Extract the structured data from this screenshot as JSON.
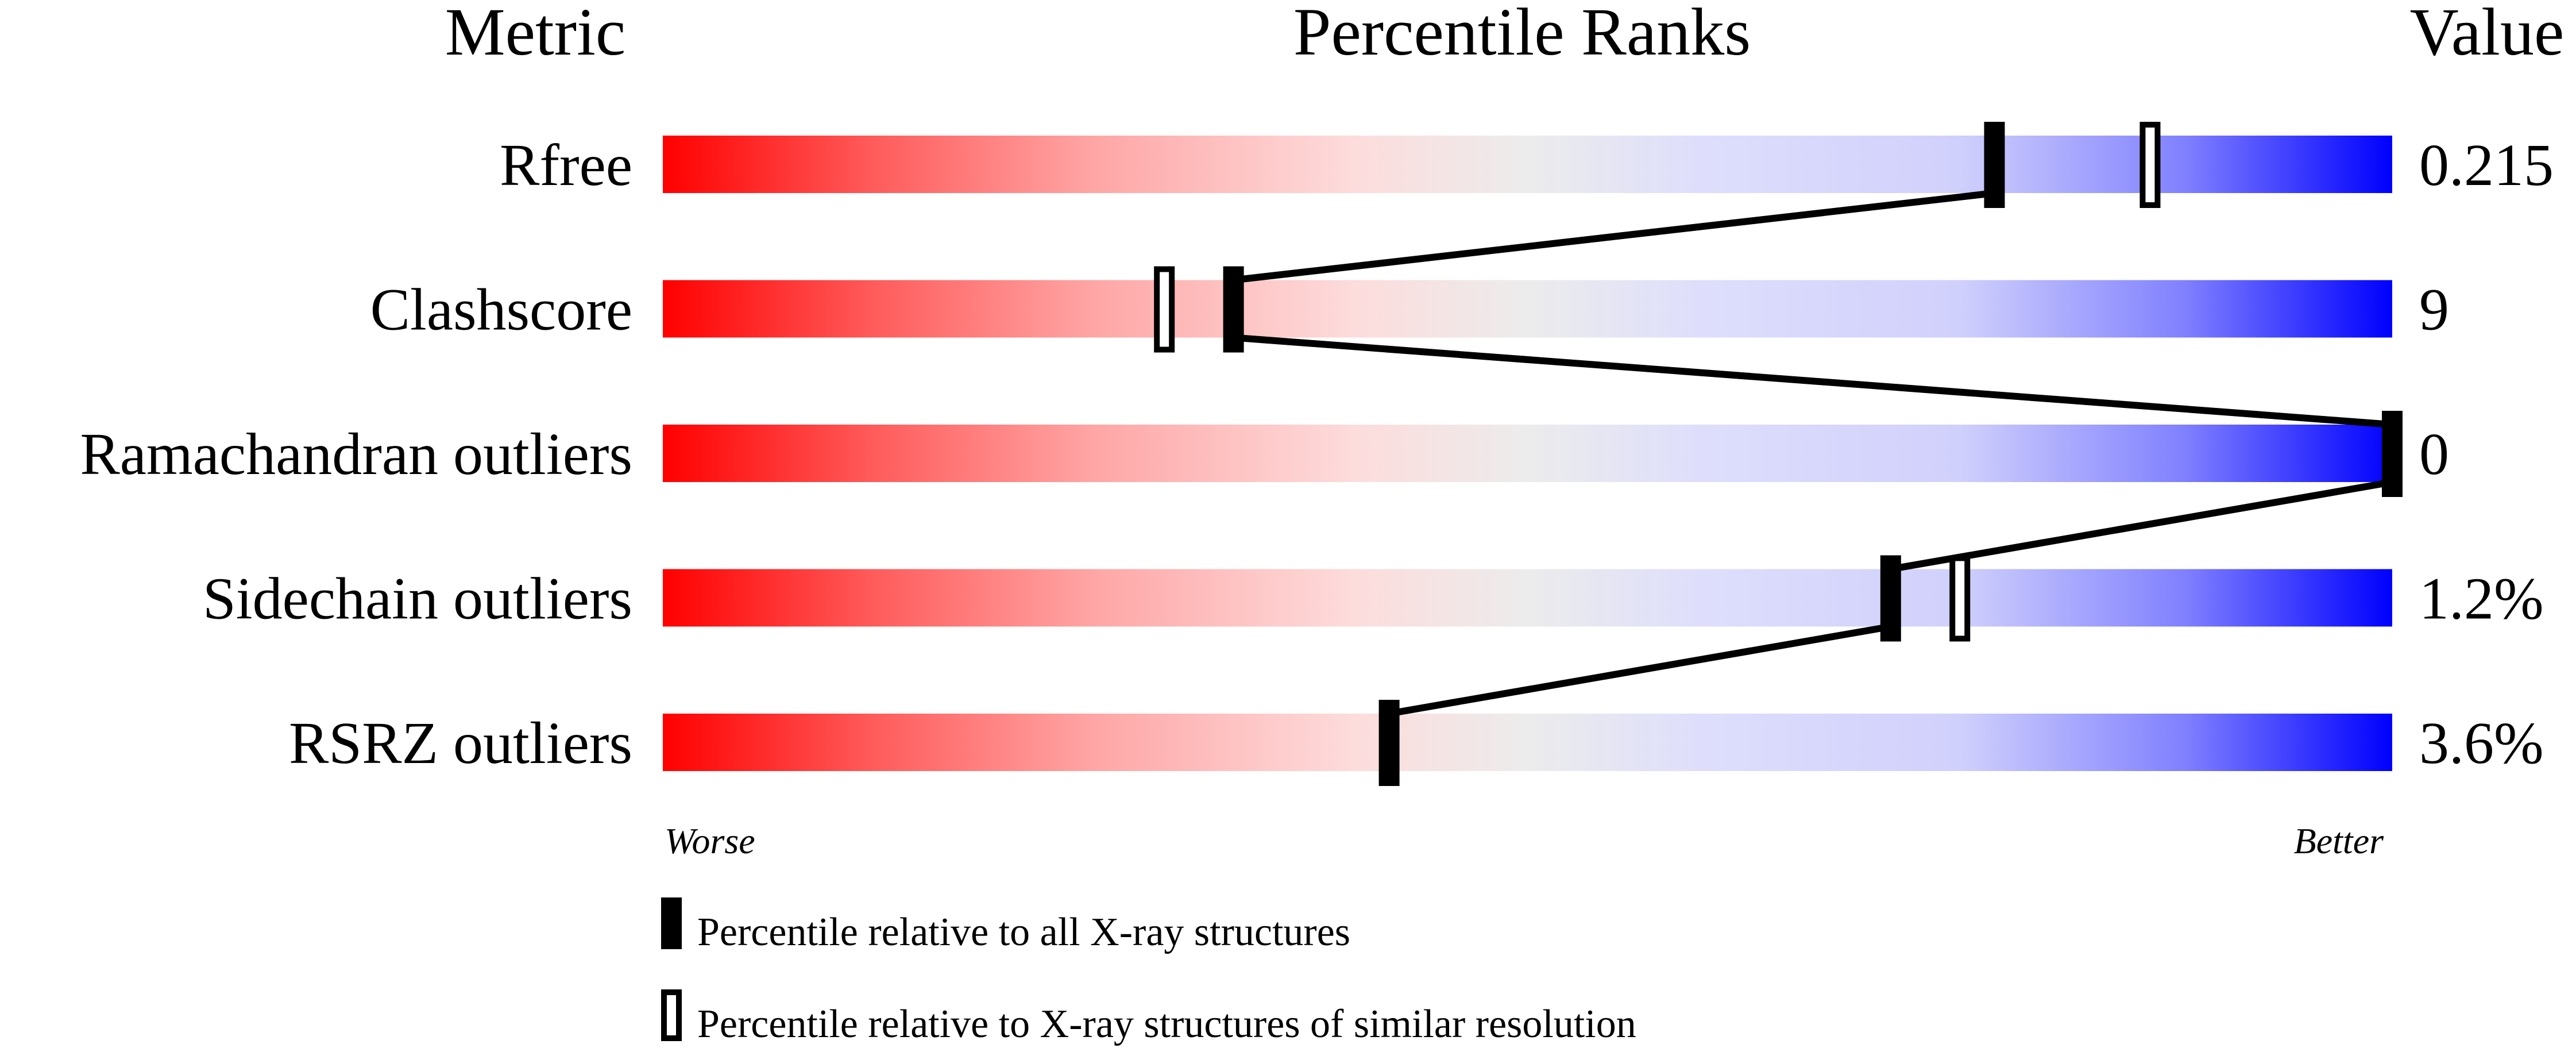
{
  "chart_data": {
    "type": "percentile-bar",
    "headers": {
      "metric": "Metric",
      "ranks": "Percentile Ranks",
      "value": "Value"
    },
    "xlim": [
      0,
      100
    ],
    "axis_labels": {
      "left": "Worse",
      "right": "Better"
    },
    "gradient_colors": [
      "#ff0000",
      "#ececec",
      "#0000ff"
    ],
    "rows": [
      {
        "metric": "Rfree",
        "value": "0.215",
        "percentile_all": 77,
        "percentile_similar": 86
      },
      {
        "metric": "Clashscore",
        "value": "9",
        "percentile_all": 33,
        "percentile_similar": 29
      },
      {
        "metric": "Ramachandran outliers",
        "value": "0",
        "percentile_all": 100,
        "percentile_similar": null
      },
      {
        "metric": "Sidechain outliers",
        "value": "1.2%",
        "percentile_all": 71,
        "percentile_similar": 75
      },
      {
        "metric": "RSRZ outliers",
        "value": "3.6%",
        "percentile_all": 42,
        "percentile_similar": null
      }
    ],
    "legend": [
      {
        "style": "filled",
        "label": "Percentile relative to all X-ray structures"
      },
      {
        "style": "hollow",
        "label": "Percentile relative to X-ray structures of similar resolution"
      }
    ]
  }
}
